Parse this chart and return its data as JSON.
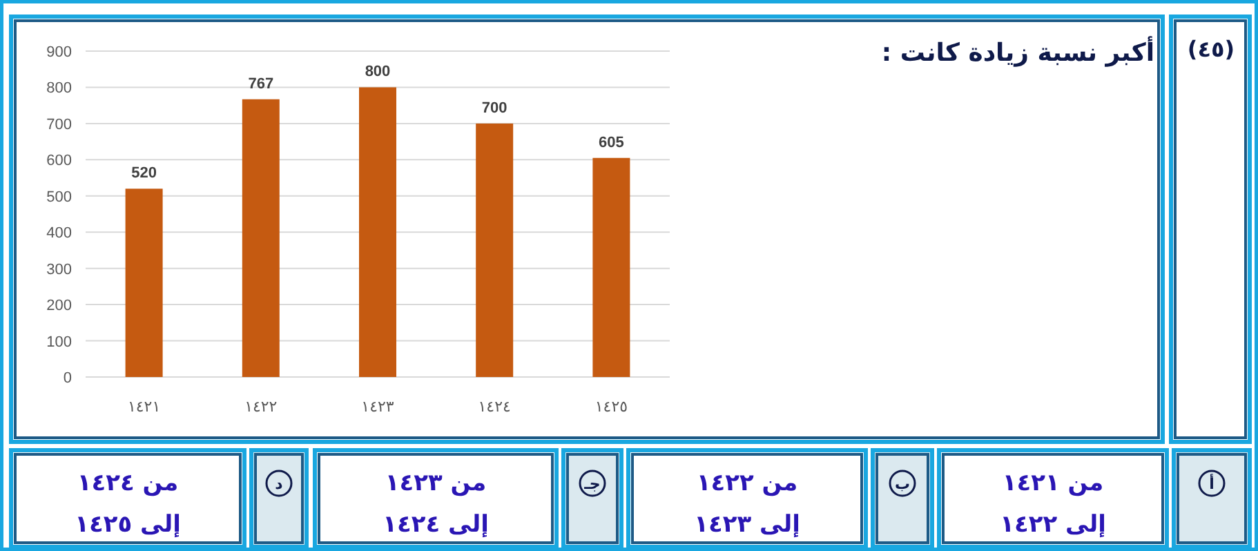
{
  "chart_data": {
    "type": "bar",
    "title": "أكبر نسبة زيادة كانت :",
    "categories": [
      "١٤٢١",
      "١٤٢٢",
      "١٤٢٣",
      "١٤٢٤",
      "١٤٢٥"
    ],
    "values": [
      520,
      767,
      800,
      700,
      605
    ],
    "color": "#c55a11",
    "data_labels": true,
    "ylim": [
      0,
      900
    ],
    "yticks": [
      0,
      100,
      200,
      300,
      400,
      500,
      600,
      700,
      800,
      900
    ],
    "grid": "y",
    "annotations": [
      "(٤٥)",
      "أ",
      "من ١٤٢١\nإلى ١٤٢٢",
      "ب",
      "من ١٤٢٢\nإلى ١٤٢٣",
      "جـ",
      "من ١٤٢٣\nإلى ١٤٢٤",
      "د",
      "من ١٤٢٤\nإلى ١٤٢٥"
    ]
  }
}
